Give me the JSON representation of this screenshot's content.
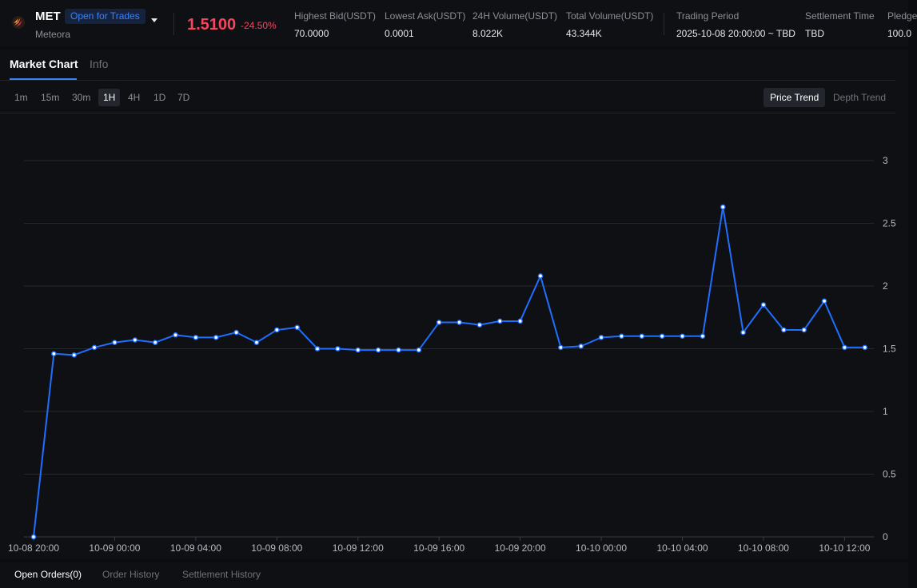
{
  "header": {
    "symbol": "MET",
    "status": "Open for Trades",
    "name": "Meteora",
    "price": "1.5100",
    "change": "-24.50%",
    "stats": [
      {
        "label": "Highest Bid(USDT)",
        "value": "70.0000"
      },
      {
        "label": "Lowest Ask(USDT)",
        "value": "0.0001"
      },
      {
        "label": "24H Volume(USDT)",
        "value": "8.022K"
      },
      {
        "label": "Total Volume(USDT)",
        "value": "43.344K"
      },
      {
        "label": "Trading Period",
        "value": "2025-10-08 20:00:00 ~ TBD"
      },
      {
        "label": "Settlement Time",
        "value": "TBD"
      },
      {
        "label": "Pledge",
        "value": "100.0"
      }
    ]
  },
  "tabs": [
    "Market Chart",
    "Info"
  ],
  "timeframes": [
    "1m",
    "15m",
    "30m",
    "1H",
    "4H",
    "1D",
    "7D"
  ],
  "active_timeframe": "1H",
  "modes": [
    "Price Trend",
    "Depth Trend"
  ],
  "active_mode": "Price Trend",
  "bottom_tabs": [
    "Open Orders(0)",
    "Order History",
    "Settlement History"
  ],
  "colors": {
    "line": "#1f6fff",
    "down": "#f6465d",
    "accent": "#3b82f6"
  },
  "chart_data": {
    "type": "line",
    "x_tick_labels": [
      "10-08 20:00",
      "10-09 00:00",
      "10-09 04:00",
      "10-09 08:00",
      "10-09 12:00",
      "10-09 16:00",
      "10-09 20:00",
      "10-10 00:00",
      "10-10 04:00",
      "10-10 08:00",
      "10-10 12:00"
    ],
    "y_ticks": [
      0,
      0.5,
      1,
      1.5,
      2,
      2.5,
      3
    ],
    "ylim": [
      0,
      3
    ],
    "y_axis_position": "right",
    "grid": true,
    "series": [
      {
        "x": [
          "10-08 20:00",
          "10-08 21:00",
          "10-08 22:00",
          "10-08 23:00",
          "10-09 00:00",
          "10-09 01:00",
          "10-09 02:00",
          "10-09 03:00",
          "10-09 04:00",
          "10-09 05:00",
          "10-09 06:00",
          "10-09 07:00",
          "10-09 08:00",
          "10-09 09:00",
          "10-09 10:00",
          "10-09 11:00",
          "10-09 12:00",
          "10-09 13:00",
          "10-09 14:00",
          "10-09 15:00",
          "10-09 16:00",
          "10-09 17:00",
          "10-09 18:00",
          "10-09 19:00",
          "10-09 20:00",
          "10-09 21:00",
          "10-09 22:00",
          "10-09 23:00",
          "10-10 00:00",
          "10-10 01:00",
          "10-10 02:00",
          "10-10 03:00",
          "10-10 04:00",
          "10-10 05:00",
          "10-10 06:00",
          "10-10 07:00",
          "10-10 08:00",
          "10-10 09:00",
          "10-10 10:00",
          "10-10 11:00",
          "10-10 12:00",
          "10-10 13:00"
        ],
        "values": [
          0,
          1.46,
          1.45,
          1.51,
          1.55,
          1.57,
          1.55,
          1.61,
          1.59,
          1.59,
          1.63,
          1.55,
          1.65,
          1.67,
          1.5,
          1.5,
          1.49,
          1.49,
          1.49,
          1.49,
          1.71,
          1.71,
          1.69,
          1.72,
          1.72,
          2.08,
          1.51,
          1.52,
          1.59,
          1.6,
          1.6,
          1.6,
          1.6,
          1.6,
          2.63,
          1.63,
          1.85,
          1.65,
          1.65,
          1.88,
          1.51,
          1.51
        ]
      }
    ]
  }
}
